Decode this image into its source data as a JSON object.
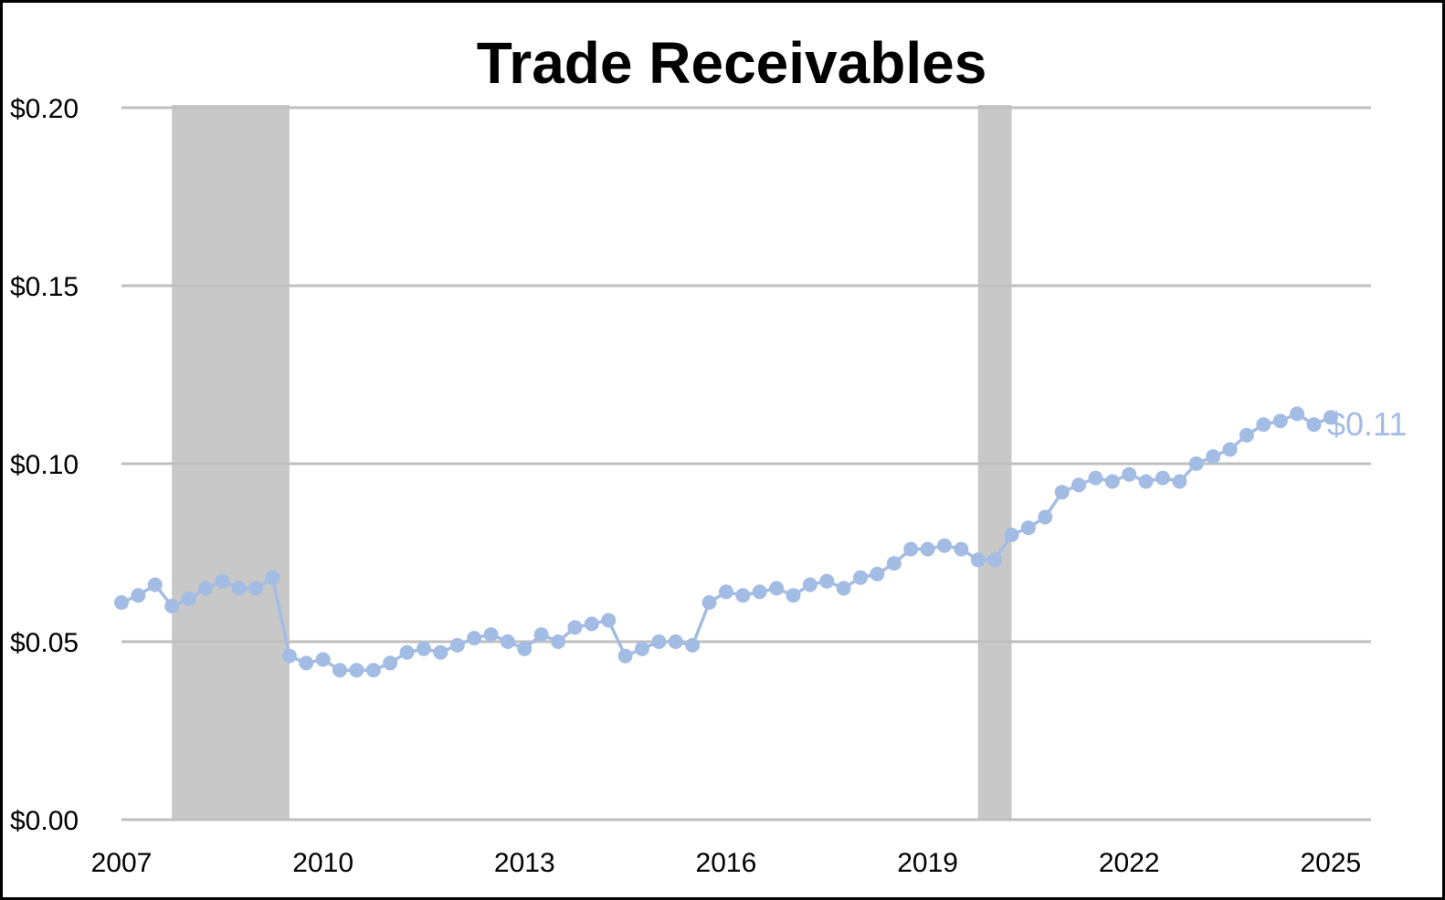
{
  "chart_data": {
    "type": "line",
    "title": "Trade Receivables",
    "xlabel": "",
    "ylabel": "",
    "ylim": [
      0,
      0.2
    ],
    "xlim": [
      2007,
      2025.6
    ],
    "grid": true,
    "y_ticks": [
      "$0.00",
      "$0.05",
      "$0.10",
      "$0.15",
      "$0.20"
    ],
    "y_tick_values": [
      0,
      0.05,
      0.1,
      0.15,
      0.2
    ],
    "x_ticks": [
      "2007",
      "2010",
      "2013",
      "2016",
      "2019",
      "2022",
      "2025"
    ],
    "x_tick_values": [
      2007,
      2010,
      2013,
      2016,
      2019,
      2022,
      2025
    ],
    "recession_bands": [
      {
        "start": 2007.75,
        "end": 2009.5
      },
      {
        "start": 2019.75,
        "end": 2020.25
      }
    ],
    "end_label": "$0.11",
    "colors": {
      "series": "#a3bce4",
      "band": "#c8c8c8",
      "grid": "#bfbfbf"
    },
    "series": [
      {
        "x": [
          2007.0,
          2007.25,
          2007.5,
          2007.75,
          2008.0,
          2008.25,
          2008.5,
          2008.75,
          2009.0,
          2009.25,
          2009.5,
          2009.75,
          2010.0,
          2010.25,
          2010.5,
          2010.75,
          2011.0,
          2011.25,
          2011.5,
          2011.75,
          2012.0,
          2012.25,
          2012.5,
          2012.75,
          2013.0,
          2013.25,
          2013.5,
          2013.75,
          2014.0,
          2014.25,
          2014.5,
          2014.75,
          2015.0,
          2015.25,
          2015.5,
          2015.75,
          2016.0,
          2016.25,
          2016.5,
          2016.75,
          2017.0,
          2017.25,
          2017.5,
          2017.75,
          2018.0,
          2018.25,
          2018.5,
          2018.75,
          2019.0,
          2019.25,
          2019.5,
          2019.75,
          2020.0,
          2020.25,
          2020.5,
          2020.75,
          2021.0,
          2021.25,
          2021.5,
          2021.75,
          2022.0,
          2022.25,
          2022.5,
          2022.75,
          2023.0,
          2023.25,
          2023.5,
          2023.75,
          2024.0,
          2024.25,
          2024.5,
          2024.75,
          2025.0
        ],
        "values": [
          0.061,
          0.063,
          0.066,
          0.06,
          0.062,
          0.065,
          0.067,
          0.065,
          0.065,
          0.068,
          0.046,
          0.044,
          0.045,
          0.042,
          0.042,
          0.042,
          0.044,
          0.047,
          0.048,
          0.047,
          0.049,
          0.051,
          0.052,
          0.05,
          0.048,
          0.052,
          0.05,
          0.054,
          0.055,
          0.056,
          0.046,
          0.048,
          0.05,
          0.05,
          0.049,
          0.061,
          0.064,
          0.063,
          0.064,
          0.065,
          0.063,
          0.066,
          0.067,
          0.065,
          0.068,
          0.069,
          0.072,
          0.076,
          0.076,
          0.077,
          0.076,
          0.073,
          0.073,
          0.08,
          0.082,
          0.085,
          0.092,
          0.094,
          0.096,
          0.095,
          0.097,
          0.095,
          0.096,
          0.095,
          0.1,
          0.102,
          0.104,
          0.108,
          0.111,
          0.112,
          0.114,
          0.111,
          0.113
        ]
      }
    ]
  }
}
